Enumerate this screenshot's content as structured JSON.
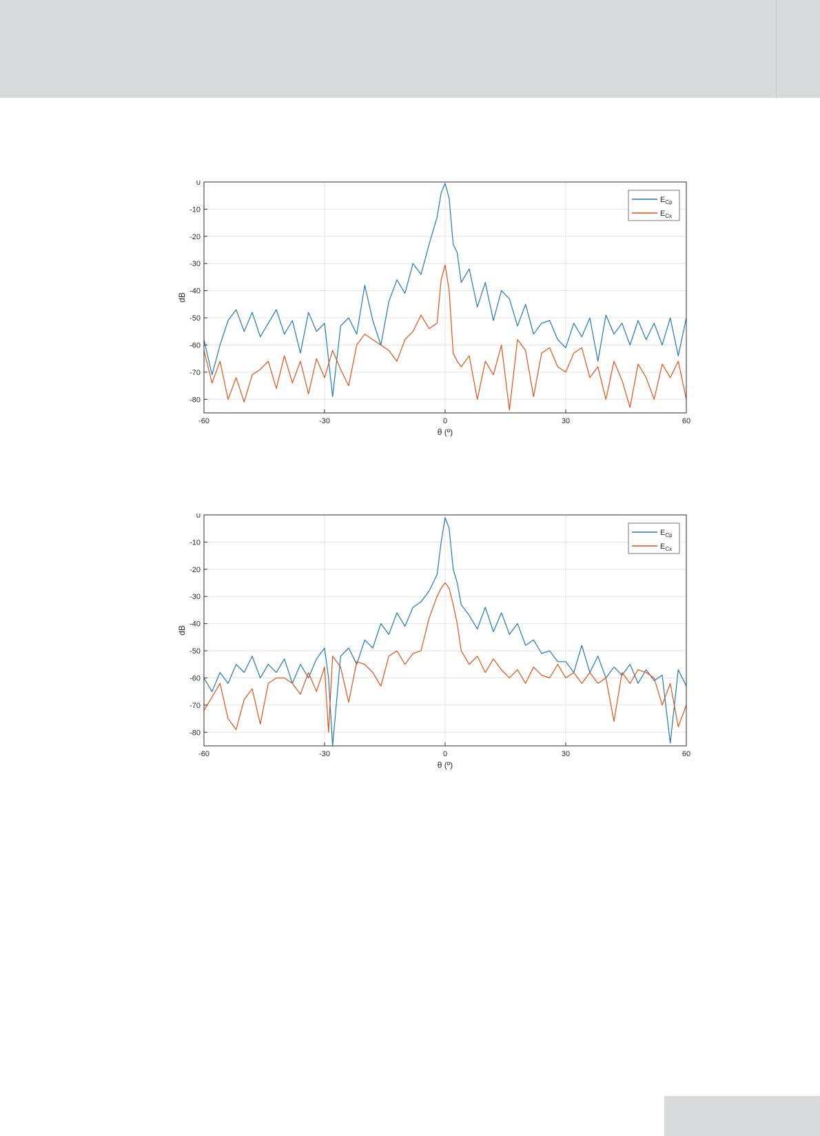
{
  "page": {
    "background": "#ffffff",
    "band_color": "#d9dadb"
  },
  "charts_style": {
    "cp_color": "#1f77b4",
    "cx_color": "#d95319",
    "grid_color": "#e3e3e3",
    "axis_color": "#2b2b2b"
  },
  "chart_data": [
    {
      "type": "line",
      "xlabel": "θ (º)",
      "ylabel": "dB",
      "xlim": [
        -60,
        60
      ],
      "ylim": [
        -85,
        0
      ],
      "xticks": [
        -60,
        -30,
        0,
        30,
        60
      ],
      "yticks": [
        0,
        -10,
        -20,
        -30,
        -40,
        -50,
        -60,
        -70,
        -80
      ],
      "grid": true,
      "legend_position": "top-right",
      "series": [
        {
          "name": "E",
          "subscript": "Cp",
          "x": [
            -60,
            -58,
            -56,
            -54,
            -52,
            -50,
            -48,
            -46,
            -44,
            -42,
            -40,
            -38,
            -36,
            -34,
            -32,
            -30,
            -28,
            -26,
            -24,
            -22,
            -20,
            -18,
            -16,
            -14,
            -12,
            -10,
            -8,
            -6,
            -4,
            -2,
            -1,
            0,
            1,
            2,
            3,
            4,
            6,
            8,
            10,
            12,
            14,
            16,
            18,
            20,
            22,
            24,
            26,
            28,
            30,
            32,
            34,
            36,
            38,
            40,
            42,
            44,
            46,
            48,
            50,
            52,
            54,
            56,
            58,
            60
          ],
          "values": [
            -58,
            -71,
            -60,
            -51,
            -47,
            -55,
            -48,
            -57,
            -52,
            -47,
            -56,
            -51,
            -63,
            -48,
            -55,
            -52,
            -79,
            -53,
            -50,
            -56,
            -38,
            -51,
            -60,
            -44,
            -36,
            -41,
            -30,
            -34,
            -23,
            -13,
            -4,
            -0.5,
            -6,
            -23,
            -26,
            -37,
            -32,
            -46,
            -37,
            -51,
            -40,
            -43,
            -53,
            -45,
            -56,
            -52,
            -51,
            -58,
            -61,
            -52,
            -57,
            -50,
            -66,
            -49,
            -56,
            -52,
            -60,
            -51,
            -58,
            -52,
            -60,
            -50,
            -64,
            -50
          ]
        },
        {
          "name": "E",
          "subscript": "Cx",
          "x": [
            -60,
            -58,
            -56,
            -54,
            -52,
            -50,
            -48,
            -46,
            -44,
            -42,
            -40,
            -38,
            -36,
            -34,
            -32,
            -30,
            -28,
            -26,
            -24,
            -22,
            -20,
            -18,
            -16,
            -14,
            -12,
            -10,
            -8,
            -6,
            -4,
            -2,
            -1,
            0,
            1,
            2,
            3,
            4,
            6,
            8,
            10,
            12,
            14,
            16,
            18,
            20,
            22,
            24,
            26,
            28,
            30,
            32,
            34,
            36,
            38,
            40,
            42,
            44,
            46,
            48,
            50,
            52,
            54,
            56,
            58,
            60
          ],
          "values": [
            -62,
            -74,
            -66,
            -80,
            -72,
            -81,
            -71,
            -69,
            -66,
            -76,
            -64,
            -74,
            -66,
            -78,
            -65,
            -72,
            -62,
            -69,
            -75,
            -60,
            -56,
            -58,
            -60,
            -62,
            -66,
            -58,
            -55,
            -49,
            -54,
            -52,
            -36,
            -30.5,
            -40,
            -63,
            -66,
            -68,
            -64,
            -80,
            -66,
            -71,
            -60,
            -84,
            -58,
            -62,
            -79,
            -63,
            -61,
            -68,
            -70,
            -63,
            -61,
            -72,
            -68,
            -80,
            -66,
            -73,
            -83,
            -67,
            -72,
            -80,
            -67,
            -72,
            -66,
            -80
          ]
        }
      ]
    },
    {
      "type": "line",
      "xlabel": "θ (º)",
      "ylabel": "dB",
      "xlim": [
        -60,
        60
      ],
      "ylim": [
        -85,
        0
      ],
      "xticks": [
        -60,
        -30,
        0,
        30,
        60
      ],
      "yticks": [
        0,
        -10,
        -20,
        -30,
        -40,
        -50,
        -60,
        -70,
        -80
      ],
      "grid": true,
      "legend_position": "top-right",
      "series": [
        {
          "name": "E",
          "subscript": "Cp",
          "x": [
            -60,
            -58,
            -56,
            -54,
            -52,
            -50,
            -48,
            -46,
            -44,
            -42,
            -40,
            -38,
            -36,
            -34,
            -32,
            -30,
            -29,
            -28,
            -26,
            -24,
            -22,
            -20,
            -18,
            -16,
            -14,
            -12,
            -10,
            -8,
            -6,
            -4,
            -2,
            -1,
            0,
            1,
            2,
            3,
            4,
            6,
            8,
            10,
            12,
            14,
            16,
            18,
            20,
            22,
            24,
            26,
            28,
            30,
            32,
            34,
            36,
            38,
            40,
            42,
            44,
            46,
            48,
            50,
            52,
            54,
            56,
            58,
            60
          ],
          "values": [
            -60,
            -65,
            -58,
            -62,
            -55,
            -58,
            -52,
            -60,
            -55,
            -58,
            -53,
            -62,
            -55,
            -60,
            -53,
            -49,
            -60,
            -85,
            -52,
            -49,
            -55,
            -46,
            -49,
            -40,
            -44,
            -36,
            -41,
            -34,
            -32,
            -28,
            -22,
            -10,
            -1,
            -5,
            -20,
            -25,
            -33,
            -37,
            -42,
            -34,
            -43,
            -36,
            -44,
            -40,
            -48,
            -46,
            -51,
            -50,
            -54,
            -54,
            -58,
            -48,
            -58,
            -52,
            -60,
            -56,
            -59,
            -55,
            -62,
            -57,
            -61,
            -59,
            -84,
            -57,
            -63
          ]
        },
        {
          "name": "E",
          "subscript": "Cx",
          "x": [
            -60,
            -58,
            -56,
            -54,
            -52,
            -50,
            -48,
            -46,
            -44,
            -42,
            -40,
            -38,
            -36,
            -34,
            -32,
            -30,
            -29,
            -28,
            -26,
            -24,
            -22,
            -20,
            -18,
            -16,
            -14,
            -12,
            -10,
            -8,
            -6,
            -4,
            -2,
            -1,
            0,
            1,
            2,
            3,
            4,
            6,
            8,
            10,
            12,
            14,
            16,
            18,
            20,
            22,
            24,
            26,
            28,
            30,
            32,
            34,
            36,
            38,
            40,
            42,
            44,
            46,
            48,
            50,
            52,
            54,
            56,
            58,
            60
          ],
          "values": [
            -72,
            -67,
            -62,
            -75,
            -79,
            -68,
            -64,
            -77,
            -62,
            -60,
            -60,
            -62,
            -66,
            -58,
            -65,
            -56,
            -80,
            -52,
            -56,
            -69,
            -54,
            -55,
            -58,
            -63,
            -52,
            -50,
            -55,
            -51,
            -50,
            -38,
            -30,
            -27,
            -25,
            -27,
            -33,
            -40,
            -50,
            -55,
            -52,
            -58,
            -53,
            -57,
            -60,
            -57,
            -62,
            -56,
            -59,
            -60,
            -55,
            -60,
            -58,
            -62,
            -58,
            -62,
            -60,
            -76,
            -58,
            -62,
            -57,
            -58,
            -60,
            -70,
            -62,
            -78,
            -70
          ]
        }
      ]
    }
  ]
}
